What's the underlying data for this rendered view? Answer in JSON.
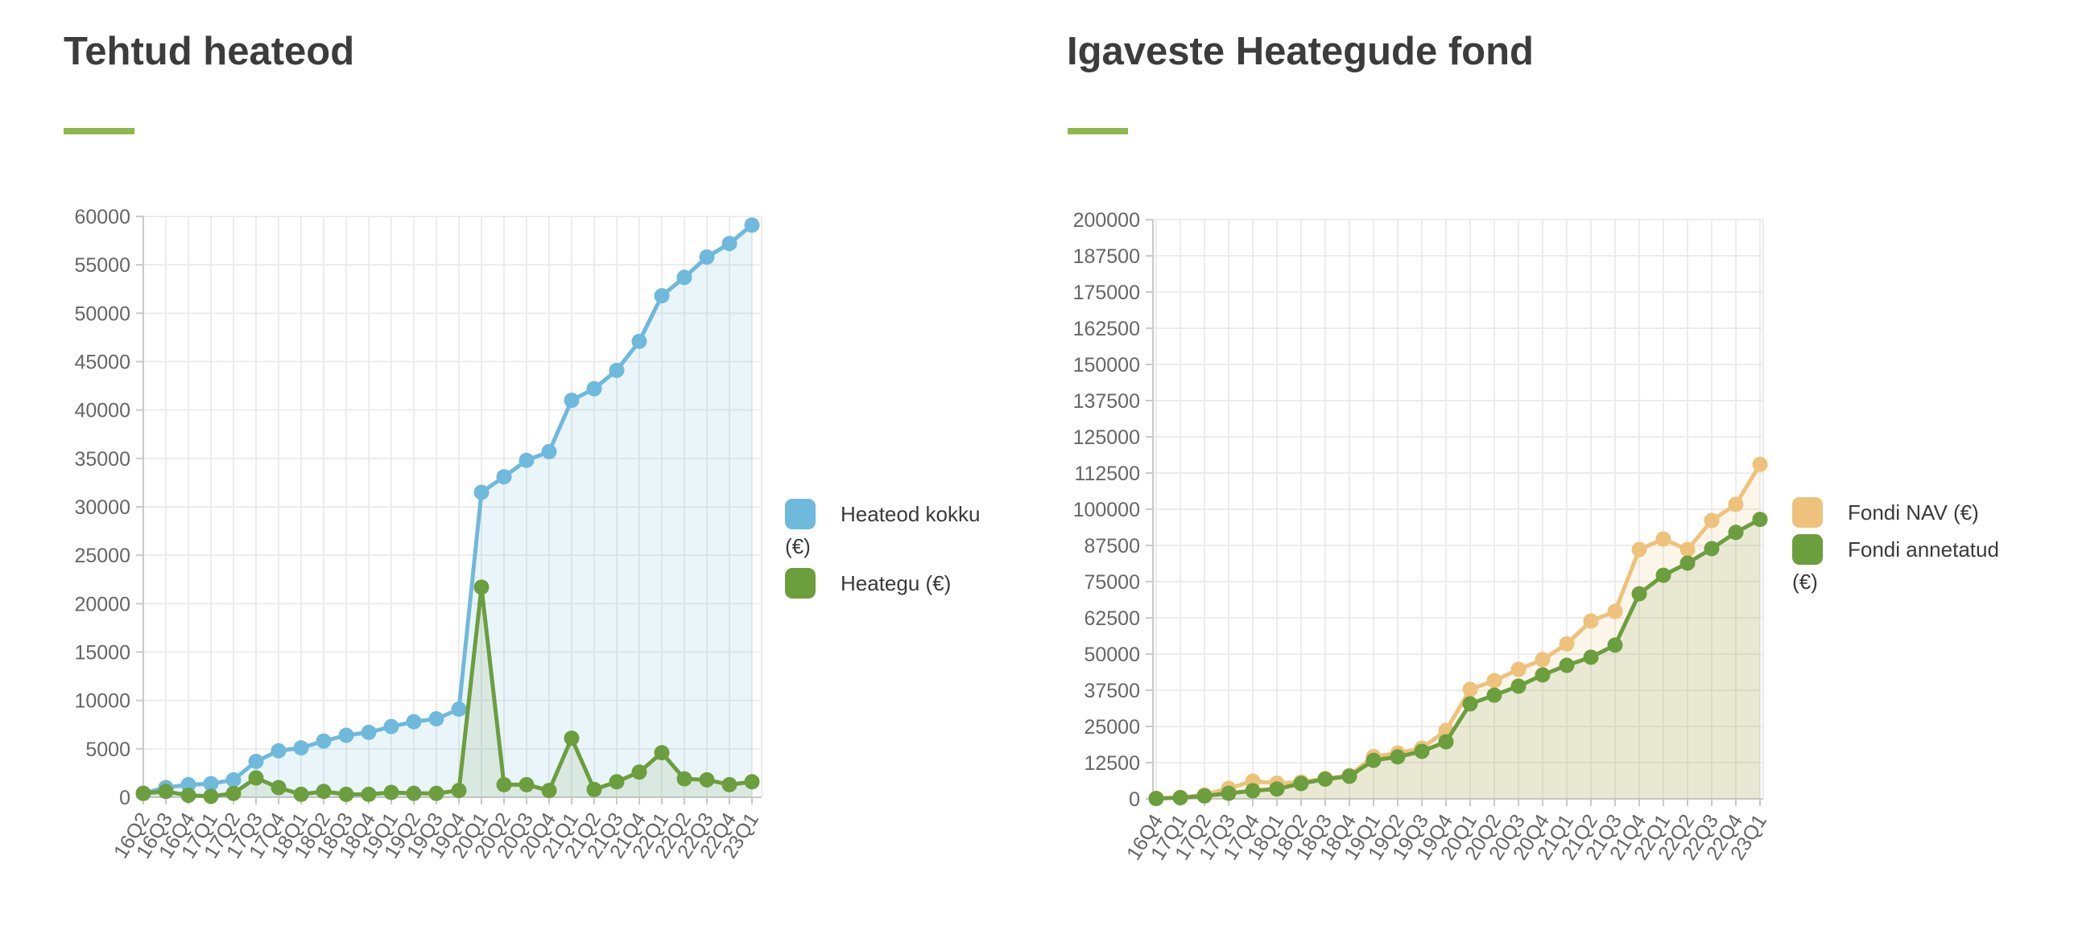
{
  "page_title_left": "Tehtud heateod",
  "page_title_right": "Igaveste Heategude fond",
  "styles": {
    "accent_color": "#8bb94a",
    "title_color": "#3c3c3c",
    "axis_label_color": "#666666",
    "gridline_color": "#ececec",
    "axis_line_color": "#c9c9c9",
    "background": "#ffffff"
  },
  "chart_data": [
    {
      "type": "area",
      "title": "Tehtud heateod",
      "xlabel": "",
      "ylabel": "",
      "ylim": [
        0,
        60000
      ],
      "ytick_step": 5000,
      "y_ticks": [
        0,
        5000,
        10000,
        15000,
        20000,
        25000,
        30000,
        35000,
        40000,
        45000,
        50000,
        55000,
        60000
      ],
      "grid": true,
      "legend_position": "right",
      "categories": [
        "16Q2",
        "16Q3",
        "16Q4",
        "17Q1",
        "17Q2",
        "17Q3",
        "17Q4",
        "18Q1",
        "18Q2",
        "18Q3",
        "18Q4",
        "19Q1",
        "19Q2",
        "19Q3",
        "19Q4",
        "20Q1",
        "20Q2",
        "20Q3",
        "20Q4",
        "21Q1",
        "21Q2",
        "21Q3",
        "21Q4",
        "22Q1",
        "22Q2",
        "22Q3",
        "22Q4",
        "23Q1"
      ],
      "series": [
        {
          "name": "Heateod kokku (€)",
          "legend_label": "Heateod kokku (€)",
          "color": "#6fb9dc",
          "fill": "rgba(111,185,220,0.15)",
          "values": [
            400,
            1000,
            1300,
            1400,
            1800,
            3700,
            4800,
            5100,
            5800,
            6400,
            6700,
            7300,
            7800,
            8100,
            9100,
            31500,
            33100,
            34800,
            35700,
            41000,
            42200,
            44100,
            47100,
            51800,
            53700,
            55800,
            57200,
            59100
          ]
        },
        {
          "name": "Heategu (€)",
          "legend_label": "Heategu (€)",
          "color": "#6b9e3d",
          "fill": "rgba(107,158,61,0.13)",
          "values": [
            400,
            600,
            200,
            100,
            400,
            2000,
            1000,
            300,
            600,
            300,
            300,
            500,
            400,
            400,
            700,
            21700,
            1300,
            1300,
            700,
            6100,
            800,
            1600,
            2600,
            4600,
            1900,
            1800,
            1300,
            1600
          ]
        }
      ]
    },
    {
      "type": "area",
      "title": "Igaveste Heategude fond",
      "xlabel": "",
      "ylabel": "",
      "ylim": [
        0,
        200000
      ],
      "ytick_step": 12500,
      "y_ticks": [
        0,
        12500,
        25000,
        37500,
        50000,
        62500,
        75000,
        87500,
        100000,
        112500,
        125000,
        137500,
        150000,
        162500,
        175000,
        187500,
        200000
      ],
      "grid": true,
      "legend_position": "right",
      "categories": [
        "16Q4",
        "17Q1",
        "17Q2",
        "17Q3",
        "17Q4",
        "18Q1",
        "18Q2",
        "18Q3",
        "18Q4",
        "19Q1",
        "19Q2",
        "19Q3",
        "19Q4",
        "20Q1",
        "20Q2",
        "20Q3",
        "20Q4",
        "21Q1",
        "21Q2",
        "21Q3",
        "21Q4",
        "22Q1",
        "22Q2",
        "22Q3",
        "22Q4",
        "23Q1"
      ],
      "series": [
        {
          "name": "Fondi NAV (€)",
          "legend_label": "Fondi NAV (€)",
          "color": "#eec27b",
          "fill": "rgba(238,194,123,0.16)",
          "values": [
            200,
            500,
            1400,
            3600,
            6100,
            5400,
            5800,
            7000,
            8100,
            14600,
            15800,
            17500,
            23600,
            37800,
            40800,
            44700,
            48100,
            53500,
            61400,
            64700,
            86100,
            89700,
            86100,
            96100,
            101700,
            115500
          ]
        },
        {
          "name": "Fondi annetatud (€)",
          "legend_label": "Fondi annetatud (€)",
          "color": "#6b9e3d",
          "fill": "rgba(107,158,61,0.13)",
          "values": [
            100,
            400,
            1000,
            1900,
            2800,
            3400,
            5300,
            6800,
            7800,
            13300,
            14500,
            16400,
            19700,
            32800,
            35800,
            38900,
            42800,
            46100,
            48900,
            53100,
            70800,
            77200,
            81400,
            86400,
            92000,
            96500
          ]
        }
      ]
    }
  ]
}
